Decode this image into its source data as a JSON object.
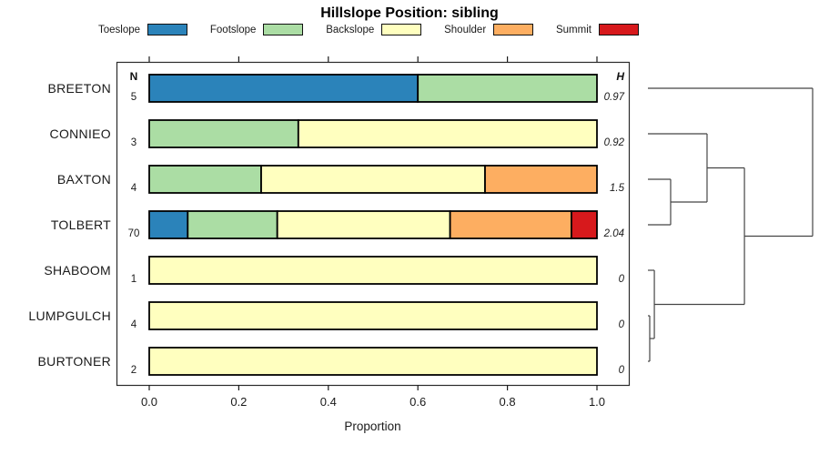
{
  "chart_data": {
    "type": "bar",
    "orientation": "horizontal-stacked",
    "title": "Hillslope Position: sibling",
    "xlabel": "Proportion",
    "xlim": [
      0,
      1
    ],
    "x_ticks": [
      "0.0",
      "0.2",
      "0.4",
      "0.6",
      "0.8",
      "1.0"
    ],
    "x_tick_values": [
      0.0,
      0.2,
      0.4,
      0.6,
      0.8,
      1.0
    ],
    "grid": false,
    "legend_position": "top",
    "categories": [
      "BREETON",
      "CONNIEO",
      "BAXTON",
      "TOLBERT",
      "SHABOOM",
      "LUMPGULCH",
      "BURTONER"
    ],
    "n_header": "N",
    "h_header": "H",
    "n_values": [
      5,
      3,
      4,
      70,
      1,
      4,
      2
    ],
    "h_values": [
      "0.97",
      "0.92",
      "1.5",
      "2.04",
      "0",
      "0",
      "0"
    ],
    "series": [
      {
        "name": "Toeslope",
        "color": "#2B83BA",
        "values": [
          0.6,
          0,
          0,
          0.086,
          0,
          0,
          0
        ]
      },
      {
        "name": "Footslope",
        "color": "#ABDDA4",
        "values": [
          0.4,
          0.333,
          0.25,
          0.2,
          0,
          0,
          0
        ]
      },
      {
        "name": "Backslope",
        "color": "#FFFFBF",
        "values": [
          0,
          0.667,
          0.5,
          0.386,
          1,
          1,
          1
        ]
      },
      {
        "name": "Shoulder",
        "color": "#FDAE61",
        "values": [
          0,
          0,
          0.25,
          0.271,
          0,
          0,
          0
        ]
      },
      {
        "name": "Summit",
        "color": "#D7191C",
        "values": [
          0,
          0,
          0,
          0.057,
          0,
          0,
          0
        ]
      }
    ],
    "dendrogram": {
      "note": "heights are fractions of dendrogram width; leaves indexed by category order",
      "merges": [
        {
          "a": [
            "leaf",
            5
          ],
          "b": [
            "leaf",
            6
          ],
          "height": 0.011
        },
        {
          "a": [
            "leaf",
            4
          ],
          "b": [
            "merge",
            0
          ],
          "height": 0.039
        },
        {
          "a": [
            "leaf",
            2
          ],
          "b": [
            "leaf",
            3
          ],
          "height": 0.138
        },
        {
          "a": [
            "leaf",
            1
          ],
          "b": [
            "merge",
            2
          ],
          "height": 0.359
        },
        {
          "a": [
            "merge",
            3
          ],
          "b": [
            "merge",
            1
          ],
          "height": 0.586
        },
        {
          "a": [
            "leaf",
            0
          ],
          "b": [
            "merge",
            4
          ],
          "height": 1.0
        }
      ]
    },
    "colors": {
      "bar_border": "#000000",
      "box_border": "#2b2b2b",
      "dendrogram_line": "#454545",
      "tick": "#1a1a1a"
    }
  }
}
